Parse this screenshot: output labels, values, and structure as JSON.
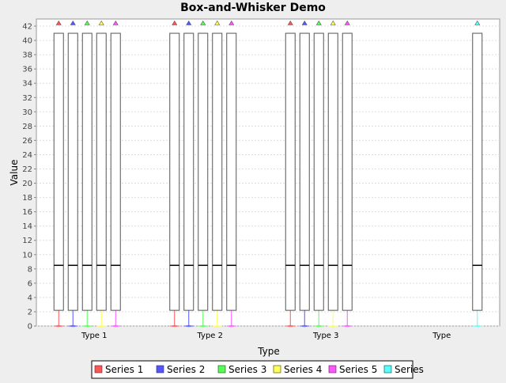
{
  "chart_data": {
    "type": "box",
    "title": "Box-and-Whisker Demo",
    "xlabel": "Type",
    "ylabel": "Value",
    "ylim": [
      0,
      43
    ],
    "yticks": [
      0,
      2,
      4,
      6,
      8,
      10,
      12,
      14,
      16,
      18,
      20,
      22,
      24,
      26,
      28,
      30,
      32,
      34,
      36,
      38,
      40,
      42
    ],
    "categories": [
      "Type 1",
      "Type 2",
      "Type 3",
      "Type"
    ],
    "grid": true,
    "legend_placement": "bottom",
    "series": [
      {
        "name": "Series 1",
        "color": "#ff5555",
        "boxes": [
          {
            "category": "Type 1",
            "q1": 2.2,
            "median": 8.5,
            "q3": 41,
            "whisker_low": 0,
            "whisker_high": 41,
            "outliers": [],
            "extremes": [
              42.5
            ]
          },
          {
            "category": "Type 2",
            "q1": 2.2,
            "median": 8.5,
            "q3": 41,
            "whisker_low": 0,
            "whisker_high": 41,
            "outliers": [],
            "extremes": [
              42.5
            ]
          },
          {
            "category": "Type 3",
            "q1": 2.2,
            "median": 8.5,
            "q3": 41,
            "whisker_low": 0,
            "whisker_high": 41,
            "outliers": [],
            "extremes": [
              42.5
            ]
          }
        ]
      },
      {
        "name": "Series 2",
        "color": "#5555ff",
        "boxes": [
          {
            "category": "Type 1",
            "q1": 2.2,
            "median": 8.5,
            "q3": 41,
            "whisker_low": 0,
            "whisker_high": 41,
            "outliers": [],
            "extremes": [
              42.5
            ]
          },
          {
            "category": "Type 2",
            "q1": 2.2,
            "median": 8.5,
            "q3": 41,
            "whisker_low": 0,
            "whisker_high": 41,
            "outliers": [],
            "extremes": [
              42.5
            ]
          },
          {
            "category": "Type 3",
            "q1": 2.2,
            "median": 8.5,
            "q3": 41,
            "whisker_low": 0,
            "whisker_high": 41,
            "outliers": [],
            "extremes": [
              42.5
            ]
          }
        ]
      },
      {
        "name": "Series 3",
        "color": "#55ff55",
        "boxes": [
          {
            "category": "Type 1",
            "q1": 2.2,
            "median": 8.5,
            "q3": 41,
            "whisker_low": 0,
            "whisker_high": 41,
            "outliers": [],
            "extremes": [
              42.5
            ]
          },
          {
            "category": "Type 2",
            "q1": 2.2,
            "median": 8.5,
            "q3": 41,
            "whisker_low": 0,
            "whisker_high": 41,
            "outliers": [],
            "extremes": [
              42.5
            ]
          },
          {
            "category": "Type 3",
            "q1": 2.2,
            "median": 8.5,
            "q3": 41,
            "whisker_low": 0,
            "whisker_high": 41,
            "outliers": [],
            "extremes": [
              42.5
            ]
          }
        ]
      },
      {
        "name": "Series 4",
        "color": "#ffff55",
        "boxes": [
          {
            "category": "Type 1",
            "q1": 2.2,
            "median": 8.5,
            "q3": 41,
            "whisker_low": 0,
            "whisker_high": 41,
            "outliers": [],
            "extremes": [
              42.5
            ]
          },
          {
            "category": "Type 2",
            "q1": 2.2,
            "median": 8.5,
            "q3": 41,
            "whisker_low": 0,
            "whisker_high": 41,
            "outliers": [],
            "extremes": [
              42.5
            ]
          },
          {
            "category": "Type 3",
            "q1": 2.2,
            "median": 8.5,
            "q3": 41,
            "whisker_low": 0,
            "whisker_high": 41,
            "outliers": [],
            "extremes": [
              42.5
            ]
          }
        ]
      },
      {
        "name": "Series 5",
        "color": "#ff55ff",
        "boxes": [
          {
            "category": "Type 1",
            "q1": 2.2,
            "median": 8.5,
            "q3": 41,
            "whisker_low": 0,
            "whisker_high": 41,
            "outliers": [],
            "extremes": [
              42.5
            ]
          },
          {
            "category": "Type 2",
            "q1": 2.2,
            "median": 8.5,
            "q3": 41,
            "whisker_low": 0,
            "whisker_high": 41,
            "outliers": [],
            "extremes": [
              42.5
            ]
          },
          {
            "category": "Type 3",
            "q1": 2.2,
            "median": 8.5,
            "q3": 41,
            "whisker_low": 0,
            "whisker_high": 41,
            "outliers": [],
            "extremes": [
              42.5
            ]
          }
        ]
      },
      {
        "name": "Series",
        "color": "#55ffff",
        "boxes": [
          {
            "category": "Type",
            "q1": 2.2,
            "median": 8.5,
            "q3": 41,
            "whisker_low": 0,
            "whisker_high": 41,
            "outliers": [],
            "extremes": [
              42.5
            ]
          }
        ]
      }
    ]
  }
}
